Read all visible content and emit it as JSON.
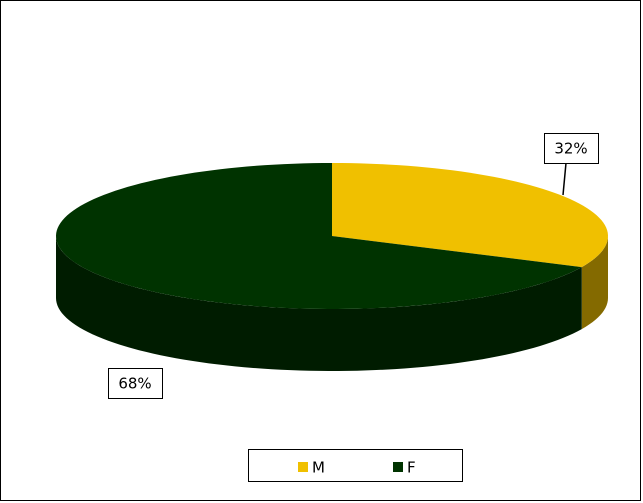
{
  "chart_data": {
    "type": "pie",
    "categories": [
      "M",
      "F"
    ],
    "values": [
      32,
      68
    ],
    "value_labels": [
      "32%",
      "68%"
    ],
    "colors": [
      "#f0c000",
      "#003300"
    ],
    "legend": "bottom"
  }
}
